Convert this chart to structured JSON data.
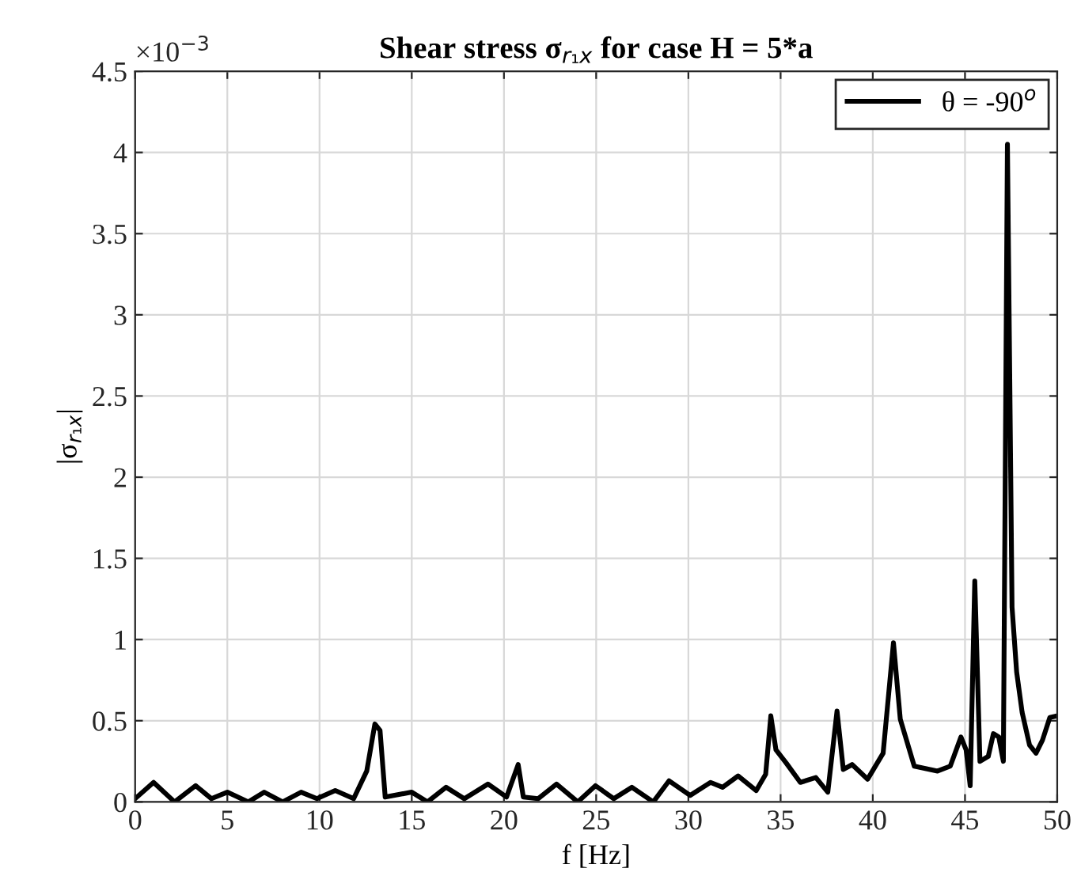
{
  "chart_data": {
    "type": "line",
    "title": "Shear stress σ$_{r₁x}$ for case H = 5*a",
    "xlabel": "f [Hz]",
    "ylabel": "|σ$_{r₁x}$|",
    "annotations": [
      "×10$^{−3}$"
    ],
    "xlim": [
      0,
      50
    ],
    "xticks": [
      0,
      5,
      10,
      15,
      20,
      25,
      30,
      35,
      40,
      45,
      50
    ],
    "ylim": [
      0,
      4.5
    ],
    "yticks": [
      0,
      0.5,
      1,
      1.5,
      2,
      2.5,
      3,
      3.5,
      4,
      4.5
    ],
    "grid": true,
    "legend": "top right",
    "marker": "none",
    "line_style": "solid",
    "series": [
      {
        "name": "θ = -90$^{o}$",
        "color": "#000000",
        "x": [
          0,
          1.0,
          2.14,
          3.28,
          4.14,
          5.0,
          6.14,
          7.0,
          8.0,
          9.0,
          9.86,
          10.85,
          11.85,
          12.56,
          13.0,
          13.28,
          13.56,
          15.0,
          15.85,
          16.86,
          17.85,
          19.13,
          20.14,
          20.77,
          21.05,
          21.85,
          22.85,
          24.0,
          24.96,
          25.95,
          26.94,
          28.1,
          28.95,
          30.1,
          31.2,
          31.85,
          32.7,
          33.68,
          34.19,
          34.47,
          34.75,
          35.3,
          36.07,
          36.91,
          37.56,
          38.06,
          38.4,
          38.88,
          39.72,
          40.56,
          41.12,
          41.49,
          42.25,
          43.51,
          44.2,
          44.78,
          45.06,
          45.28,
          45.53,
          45.81,
          46.26,
          46.54,
          46.83,
          47.08,
          47.3,
          47.55,
          47.8,
          48.1,
          48.5,
          48.85,
          49.2,
          49.6,
          50
        ],
        "values": [
          0.02,
          0.12,
          0.0,
          0.1,
          0.02,
          0.06,
          0.0,
          0.06,
          0.0,
          0.06,
          0.02,
          0.07,
          0.02,
          0.19,
          0.48,
          0.44,
          0.03,
          0.06,
          0.0,
          0.09,
          0.02,
          0.11,
          0.03,
          0.23,
          0.03,
          0.02,
          0.11,
          0.0,
          0.1,
          0.02,
          0.09,
          0.0,
          0.13,
          0.04,
          0.12,
          0.09,
          0.16,
          0.07,
          0.17,
          0.53,
          0.32,
          0.24,
          0.12,
          0.15,
          0.06,
          0.56,
          0.2,
          0.23,
          0.14,
          0.3,
          0.98,
          0.51,
          0.22,
          0.19,
          0.22,
          0.4,
          0.32,
          0.1,
          1.36,
          0.25,
          0.28,
          0.42,
          0.4,
          0.25,
          4.05,
          1.2,
          0.8,
          0.55,
          0.35,
          0.3,
          0.38,
          0.52,
          0.53
        ]
      }
    ]
  }
}
